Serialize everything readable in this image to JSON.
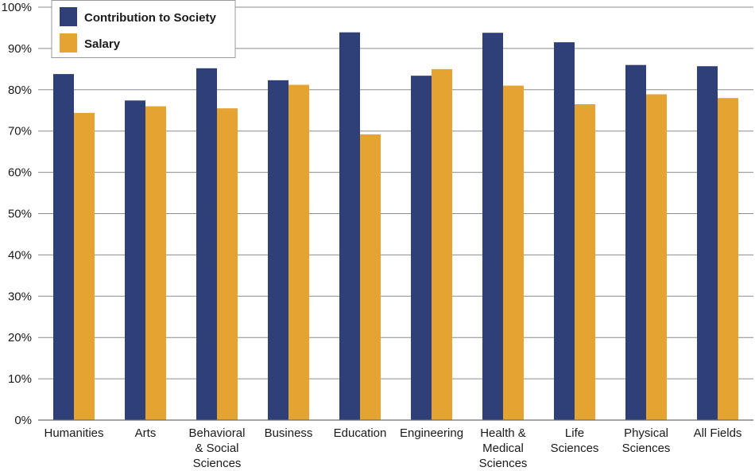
{
  "chart_data": {
    "type": "bar",
    "title": "",
    "xlabel": "",
    "ylabel": "",
    "ylim": [
      0,
      100
    ],
    "yticks": [
      0,
      10,
      20,
      30,
      40,
      50,
      60,
      70,
      80,
      90,
      100
    ],
    "ytick_labels": [
      "0%",
      "10%",
      "20%",
      "30%",
      "40%",
      "50%",
      "60%",
      "70%",
      "80%",
      "90%",
      "100%"
    ],
    "grid": true,
    "legend_position": "top-left",
    "categories": [
      [
        "Humanities"
      ],
      [
        "Arts"
      ],
      [
        "Behavioral",
        "& Social",
        "Sciences"
      ],
      [
        "Business"
      ],
      [
        "Education"
      ],
      [
        "Engineering"
      ],
      [
        "Health &",
        "Medical",
        "Sciences"
      ],
      [
        "Life",
        "Sciences"
      ],
      [
        "Physical",
        "Sciences"
      ],
      [
        "All Fields"
      ]
    ],
    "series": [
      {
        "name": "Contribution to Society",
        "color": "#2f3f78",
        "values": [
          83.8,
          77.4,
          85.2,
          82.3,
          93.9,
          83.4,
          93.8,
          91.5,
          86.0,
          85.7
        ]
      },
      {
        "name": "Salary",
        "color": "#e5a332",
        "values": [
          74.4,
          76.0,
          75.5,
          81.2,
          69.2,
          85.0,
          81.0,
          76.5,
          78.9,
          78.0
        ]
      }
    ]
  }
}
